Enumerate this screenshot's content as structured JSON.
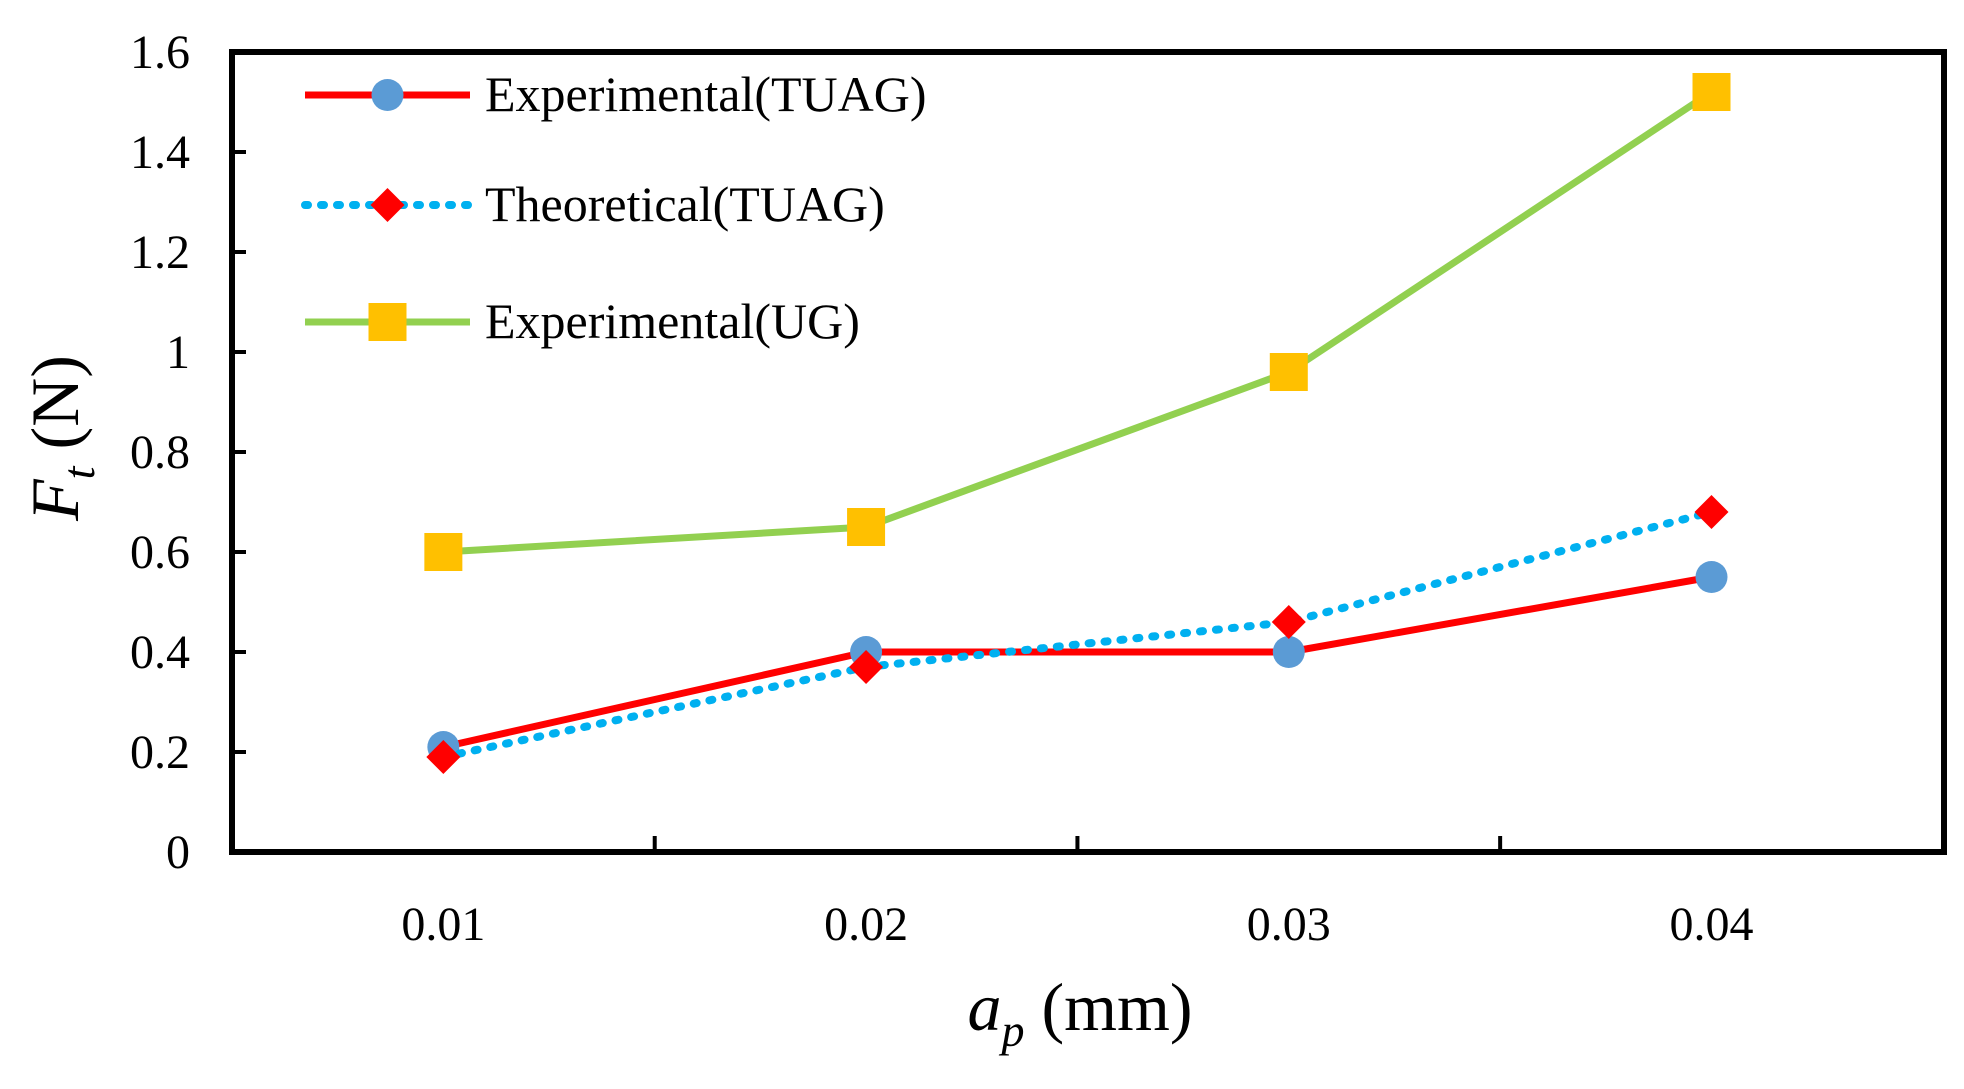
{
  "chart_data": {
    "type": "line",
    "x": [
      0.01,
      0.02,
      0.03,
      0.04
    ],
    "x_tick_labels": [
      "0.01",
      "0.02",
      "0.03",
      "0.04"
    ],
    "y_tick_labels": [
      "0",
      "0.2",
      "0.4",
      "0.6",
      "0.8",
      "1",
      "1.2",
      "1.4",
      "1.6"
    ],
    "xlim": [
      0.005,
      0.0455
    ],
    "ylim": [
      0,
      1.6
    ],
    "xlabel": {
      "main": "a",
      "sub": "p",
      "unit": " (mm)"
    },
    "ylabel": {
      "main": "F",
      "sub": "t",
      "unit": " (N)"
    },
    "grid": false,
    "legend_position": "top-left",
    "series": [
      {
        "name": "Experimental(TUAG)",
        "values": [
          0.21,
          0.4,
          0.4,
          0.55
        ],
        "line_color": "#ff0000",
        "line_style": "solid",
        "marker": "circle",
        "marker_color": "#5b9bd5"
      },
      {
        "name": "Theoretical(TUAG)",
        "values": [
          0.19,
          0.37,
          0.46,
          0.68
        ],
        "line_color": "#00b0f0",
        "line_style": "dotted",
        "marker": "diamond",
        "marker_color": "#ff0000"
      },
      {
        "name": "Experimental(UG)",
        "values": [
          0.6,
          0.65,
          0.96,
          1.52
        ],
        "line_color": "#92d050",
        "line_style": "solid",
        "marker": "square",
        "marker_color": "#ffc000"
      }
    ]
  }
}
